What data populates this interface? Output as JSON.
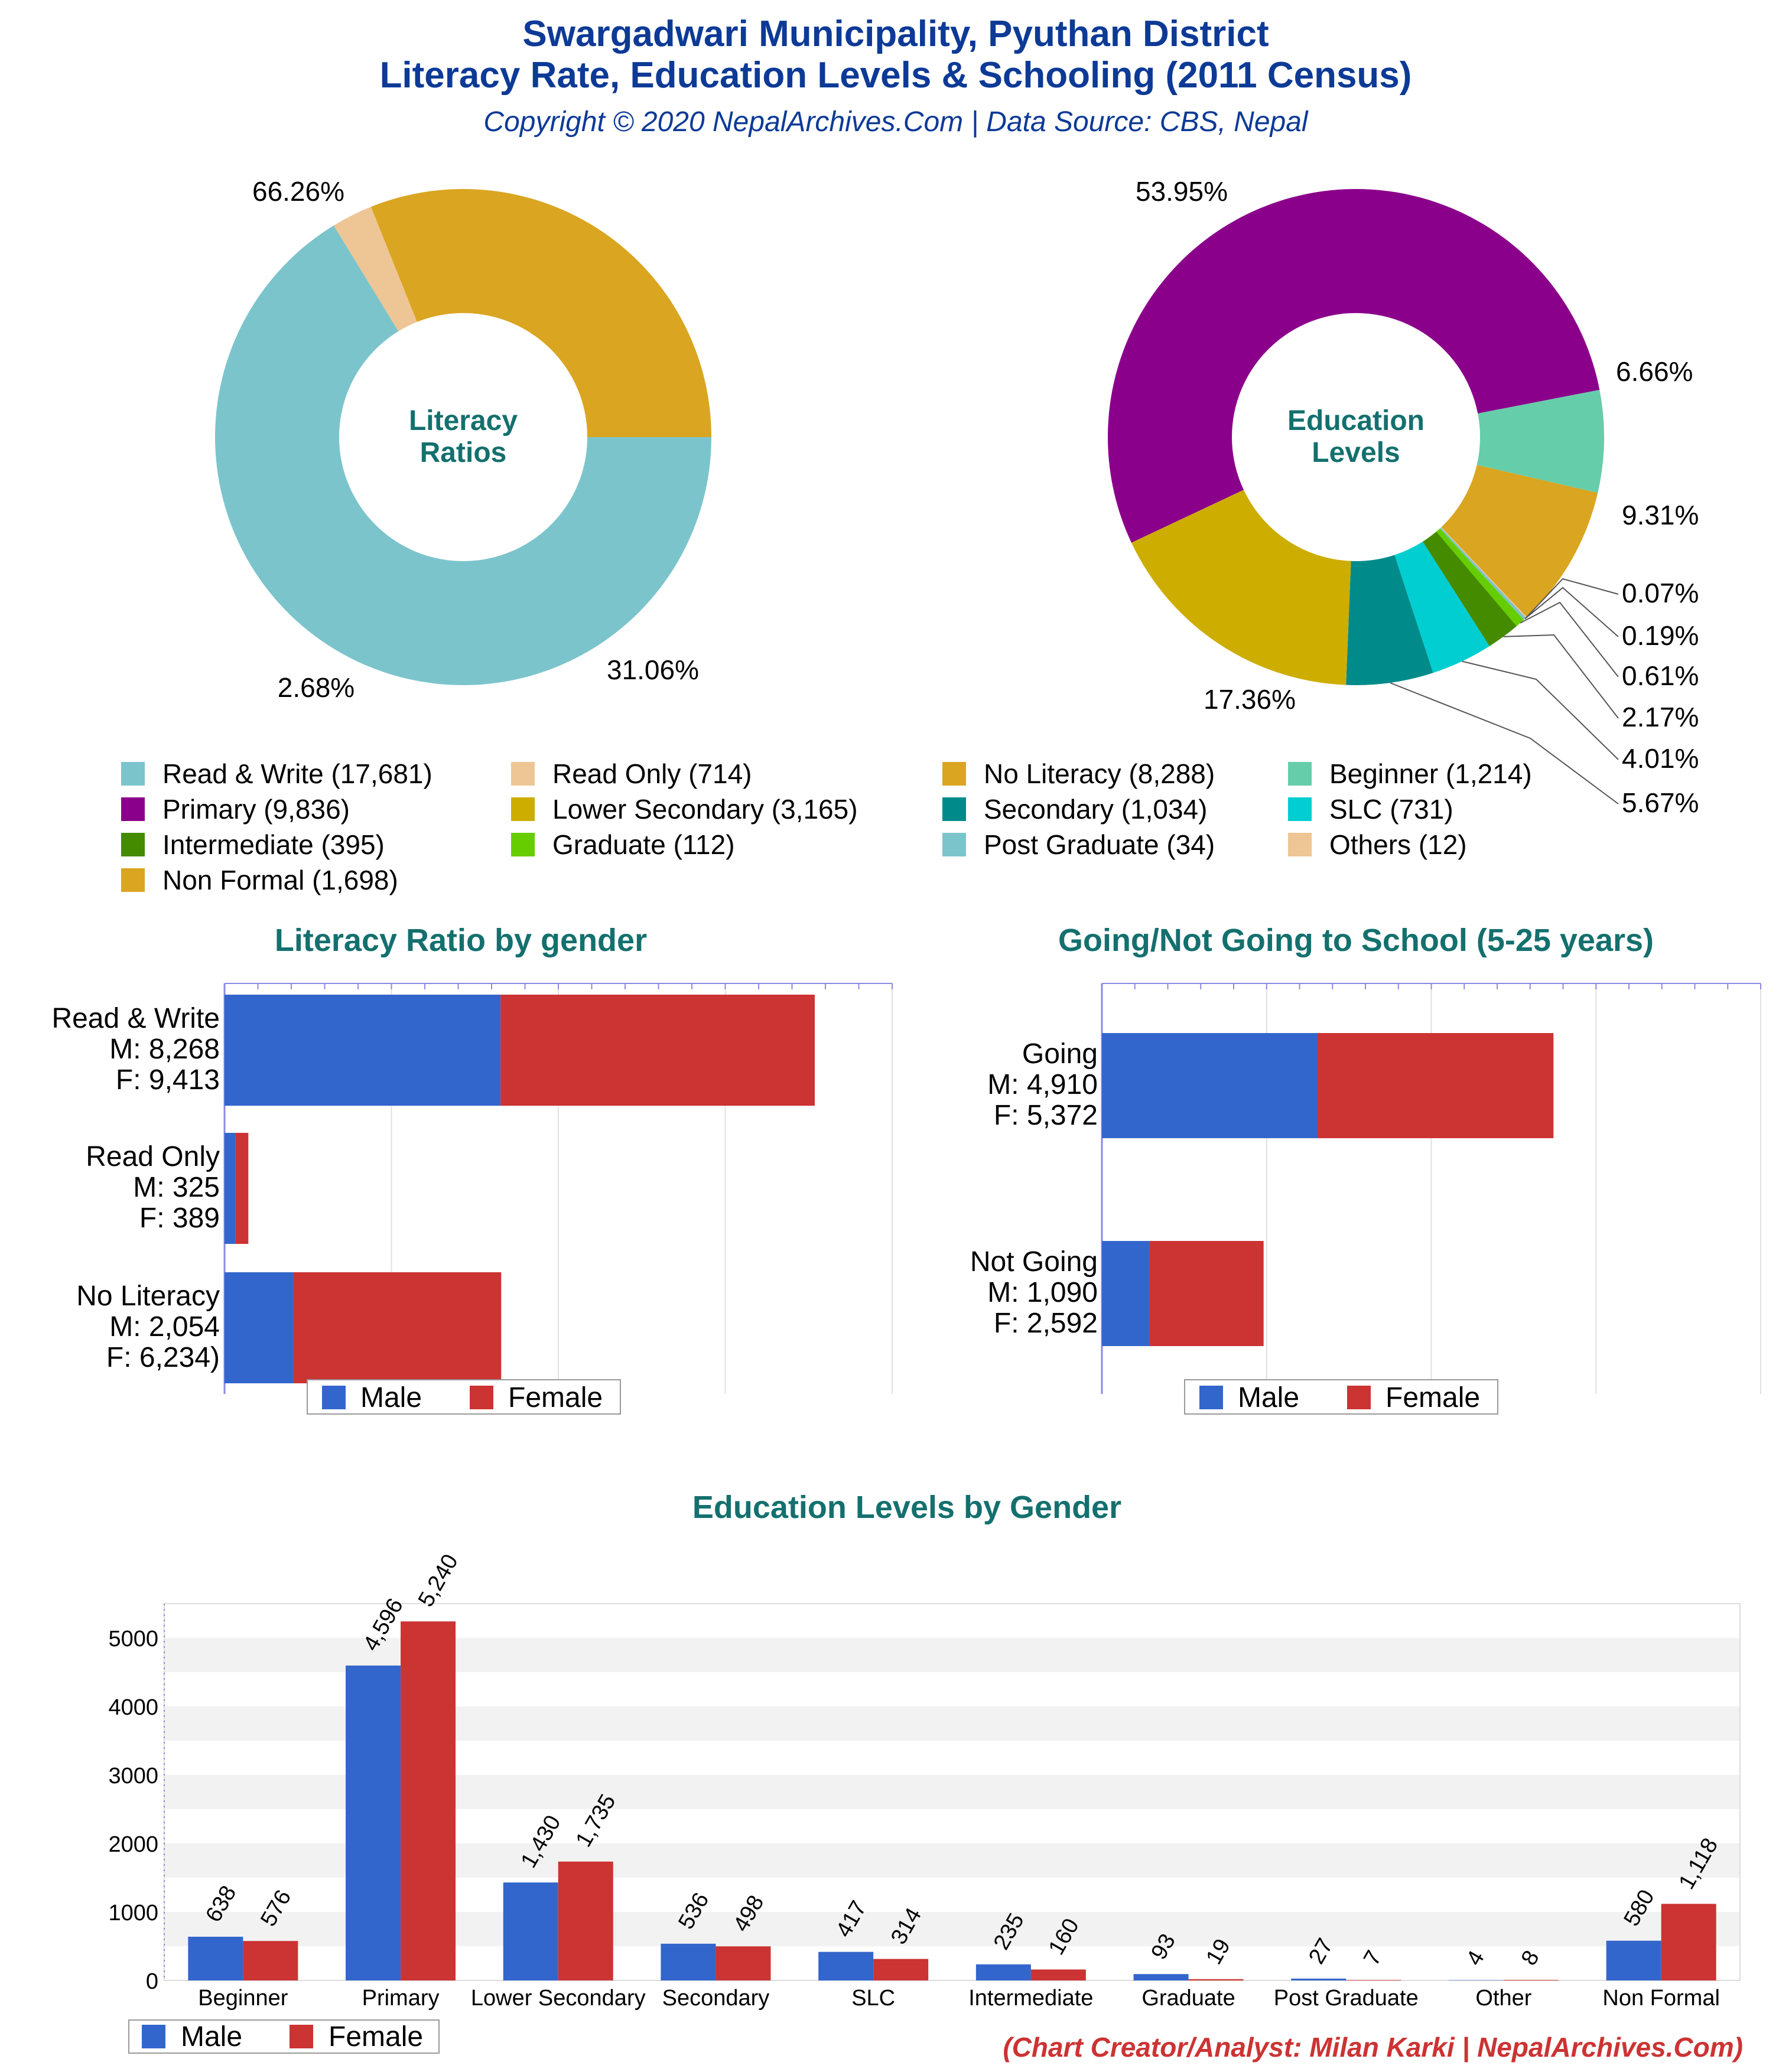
{
  "header": {
    "title_line1": "Swargadwari Municipality, Pyuthan District",
    "title_line2": "Literacy Rate, Education Levels & Schooling (2011 Census)",
    "subtitle": "Copyright © 2020 NepalArchives.Com | Data Source: CBS, Nepal"
  },
  "footer": {
    "credit": "(Chart Creator/Analyst: Milan Karki | NepalArchives.Com)"
  },
  "colors": {
    "title": "#0d3a96",
    "teal_title": "#14706e",
    "male": "#3366cc",
    "female": "#cc3333",
    "credit": "#cc3333"
  },
  "legend": [
    {
      "label": "Read & Write (17,681)",
      "color": "#7cc4cc"
    },
    {
      "label": "Read Only (714)",
      "color": "#eec594"
    },
    {
      "label": "No Literacy (8,288)",
      "color": "#daa520"
    },
    {
      "label": "Beginner (1,214)",
      "color": "#66cdaa"
    },
    {
      "label": "Primary (9,836)",
      "color": "#8b008b"
    },
    {
      "label": "Lower Secondary (3,165)",
      "color": "#cdad00"
    },
    {
      "label": "Secondary (1,034)",
      "color": "#008b8b"
    },
    {
      "label": "SLC (731)",
      "color": "#00ced1"
    },
    {
      "label": "Intermediate (395)",
      "color": "#458b00"
    },
    {
      "label": "Graduate (112)",
      "color": "#66cd00"
    },
    {
      "label": "Post Graduate (34)",
      "color": "#7cc4cc"
    },
    {
      "label": "Others (12)",
      "color": "#eec594"
    },
    {
      "label": "Non Formal (1,698)",
      "color": "#daa520"
    }
  ],
  "chart_data": [
    {
      "type": "pie",
      "title": "Literacy Ratios",
      "labels": [
        "Read & Write",
        "Read Only",
        "No Literacy"
      ],
      "values": [
        17681,
        714,
        8288
      ],
      "percent_labels": [
        "66.26%",
        "2.68%",
        "31.06%"
      ],
      "colors": [
        "#7cc4cc",
        "#eec594",
        "#daa520"
      ]
    },
    {
      "type": "pie",
      "title": "Education Levels",
      "labels": [
        "Primary",
        "Beginner",
        "Non Formal",
        "Others",
        "Post Graduate",
        "Graduate",
        "Intermediate",
        "SLC",
        "Secondary",
        "Lower Secondary"
      ],
      "values": [
        9836,
        1214,
        1698,
        12,
        34,
        112,
        395,
        731,
        1034,
        3165
      ],
      "percent_labels": [
        "53.95%",
        "6.66%",
        "9.31%",
        "0.07%",
        "0.19%",
        "0.61%",
        "2.17%",
        "4.01%",
        "5.67%",
        "17.36%"
      ],
      "colors": [
        "#8b008b",
        "#66cdaa",
        "#daa520",
        "#eec594",
        "#7cc4cc",
        "#66cd00",
        "#458b00",
        "#00ced1",
        "#008b8b",
        "#cdad00"
      ]
    },
    {
      "type": "bar",
      "orientation": "horizontal",
      "stacked": true,
      "title": "Literacy Ratio by gender",
      "categories": [
        "Read & Write",
        "Read Only",
        "No Literacy"
      ],
      "category_labels": [
        [
          "Read & Write",
          "M: 8,268",
          "F: 9,413"
        ],
        [
          "Read Only",
          "M: 325",
          "F: 389"
        ],
        [
          "No Literacy",
          "M: 2,054",
          "F: 6,234)"
        ]
      ],
      "series": [
        {
          "name": "Male",
          "values": [
            8268,
            325,
            2054
          ]
        },
        {
          "name": "Female",
          "values": [
            9413,
            389,
            6234
          ]
        }
      ],
      "xlim": [
        0,
        20000
      ],
      "legend": [
        "Male",
        "Female"
      ],
      "legend_position": "bottom"
    },
    {
      "type": "bar",
      "orientation": "horizontal",
      "stacked": true,
      "title": "Going/Not Going to School (5-25 years)",
      "categories": [
        "Going",
        "Not Going"
      ],
      "category_labels": [
        [
          "Going",
          "M: 4,910",
          "F: 5,372"
        ],
        [
          "Not Going",
          "M: 1,090",
          "F: 2,592"
        ]
      ],
      "series": [
        {
          "name": "Male",
          "values": [
            4910,
            1090
          ]
        },
        {
          "name": "Female",
          "values": [
            5372,
            2592
          ]
        }
      ],
      "xlim": [
        0,
        15000
      ],
      "legend": [
        "Male",
        "Female"
      ],
      "legend_position": "bottom"
    },
    {
      "type": "bar",
      "title": "Education Levels by Gender",
      "categories": [
        "Beginner",
        "Primary",
        "Lower Secondary",
        "Secondary",
        "SLC",
        "Intermediate",
        "Graduate",
        "Post Graduate",
        "Other",
        "Non Formal"
      ],
      "series": [
        {
          "name": "Male",
          "values": [
            638,
            4596,
            1430,
            536,
            417,
            235,
            93,
            27,
            4,
            580
          ],
          "labels": [
            "638",
            "4,596",
            "1,430",
            "536",
            "417",
            "235",
            "93",
            "27",
            "4",
            "580"
          ]
        },
        {
          "name": "Female",
          "values": [
            576,
            5240,
            1735,
            498,
            314,
            160,
            19,
            7,
            8,
            1118
          ],
          "labels": [
            "576",
            "5,240",
            "1,735",
            "498",
            "314",
            "160",
            "19",
            "7",
            "8",
            "1,118"
          ]
        }
      ],
      "yticks": [
        "0",
        "1000",
        "2000",
        "3000",
        "4000",
        "5000"
      ],
      "ylim": [
        0,
        5500
      ],
      "legend": [
        "Male",
        "Female"
      ],
      "legend_position": "bottom-left"
    }
  ]
}
